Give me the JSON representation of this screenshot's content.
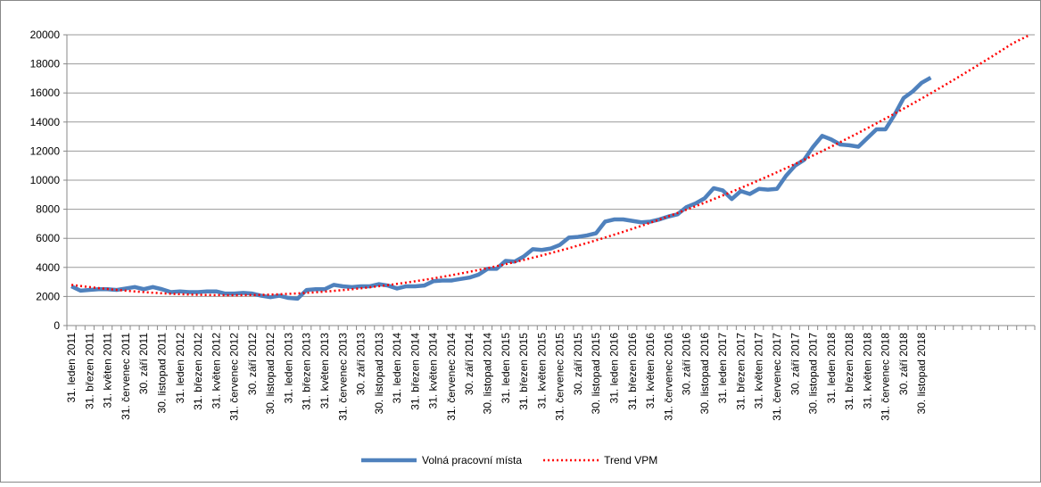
{
  "chart_data": {
    "type": "line",
    "categories": [
      "31. leden 2011",
      null,
      "31. březen 2011",
      null,
      "31. květen 2011",
      null,
      "31. červenec 2011",
      null,
      "30. září 2011",
      null,
      "30. listopad 2011",
      null,
      "31. leden 2012",
      null,
      "31. březen 2012",
      null,
      "31. květen 2012",
      null,
      "31. červenec 2012",
      null,
      "30. září 2012",
      null,
      "30. listopad 2012",
      null,
      "31. leden 2013",
      null,
      "31. březen 2013",
      null,
      "31. květen 2013",
      null,
      "31. červenec 2013",
      null,
      "30. září 2013",
      null,
      "30. listopad 2013",
      null,
      "31. leden 2014",
      null,
      "31. březen 2014",
      null,
      "31. květen 2014",
      null,
      "31. červenec 2014",
      null,
      "30. září 2014",
      null,
      "30. listopad 2014",
      null,
      "31. leden 2015",
      null,
      "31. březen 2015",
      null,
      "31. květen 2015",
      null,
      "31. červenec 2015",
      null,
      "30. září 2015",
      null,
      "30. listopad 2015",
      null,
      "31. leden 2016",
      null,
      "31. březen 2016",
      null,
      "31. květen 2016",
      null,
      "31. červenec 2016",
      null,
      "30. září 2016",
      null,
      "30. listopad 2016",
      null,
      "31. leden 2017",
      null,
      "31. březen 2017",
      null,
      "31. květen 2017",
      null,
      "31. červenec 2017",
      null,
      "30. září 2017",
      null,
      "30. listopad 2017",
      null,
      "31. leden 2018",
      null,
      "31. březen 2018",
      null,
      "31. květen 2018",
      null,
      "31. červenec 2018",
      null,
      "30. září 2018",
      null,
      "30. listopad 2018",
      null,
      null,
      null,
      null,
      null,
      null,
      null,
      null,
      null,
      null,
      null,
      null
    ],
    "series": [
      {
        "name": "Volná pracovní místa",
        "color": "#4f81bd",
        "style": "solid",
        "values": [
          2700,
          2400,
          2450,
          2500,
          2500,
          2450,
          2550,
          2650,
          2500,
          2650,
          2500,
          2300,
          2350,
          2300,
          2300,
          2350,
          2350,
          2200,
          2200,
          2250,
          2200,
          2050,
          1950,
          2050,
          1900,
          1850,
          2450,
          2500,
          2500,
          2800,
          2700,
          2650,
          2700,
          2700,
          2850,
          2750,
          2550,
          2700,
          2700,
          2750,
          3050,
          3100,
          3100,
          3200,
          3300,
          3500,
          3900,
          3900,
          4450,
          4400,
          4750,
          5250,
          5200,
          5300,
          5550,
          6050,
          6100,
          6200,
          6350,
          7150,
          7300,
          7300,
          7200,
          7100,
          7150,
          7300,
          7500,
          7650,
          8150,
          8400,
          8750,
          9450,
          9300,
          8700,
          9250,
          9050,
          9400,
          9350,
          9400,
          10300,
          11000,
          11400,
          12300,
          13050,
          12800,
          12450,
          12400,
          12300,
          12900,
          13500,
          13500,
          14500,
          15650,
          16100,
          16700,
          17050,
          null,
          null,
          null,
          null,
          null,
          null,
          null,
          null,
          null,
          null,
          null
        ]
      },
      {
        "name": "Trend VPM",
        "color": "#ff0000",
        "style": "dotted",
        "values": [
          2800,
          2721,
          2647,
          2578,
          2513,
          2453,
          2397,
          2346,
          2300,
          2258,
          2220,
          2188,
          2159,
          2136,
          2117,
          2103,
          2093,
          2088,
          2087,
          2091,
          2100,
          2113,
          2130,
          2153,
          2180,
          2211,
          2248,
          2289,
          2334,
          2385,
          2440,
          2499,
          2564,
          2633,
          2706,
          2784,
          2867,
          2954,
          3047,
          3143,
          3245,
          3351,
          3461,
          3577,
          3697,
          3821,
          3950,
          4084,
          4222,
          4366,
          4514,
          4666,
          4823,
          4985,
          5151,
          5322,
          5498,
          5678,
          5863,
          6053,
          6248,
          6447,
          6651,
          6859,
          7072,
          7290,
          7512,
          7739,
          7971,
          8207,
          8448,
          8694,
          8944,
          9199,
          9459,
          9723,
          9992,
          10265,
          10543,
          10826,
          11113,
          11405,
          11701,
          12002,
          12308,
          12618,
          12933,
          13252,
          13576,
          13905,
          14238,
          14576,
          14918,
          15265,
          15617,
          15973,
          16334,
          16700,
          17070,
          17444,
          17823,
          18207,
          18596,
          18989,
          19386,
          19700,
          20000
        ]
      }
    ],
    "ylim": [
      0,
      20000
    ],
    "yticks": [
      0,
      2000,
      4000,
      6000,
      8000,
      10000,
      12000,
      14000,
      16000,
      18000,
      20000
    ],
    "grid": true,
    "legend": "bottom"
  }
}
